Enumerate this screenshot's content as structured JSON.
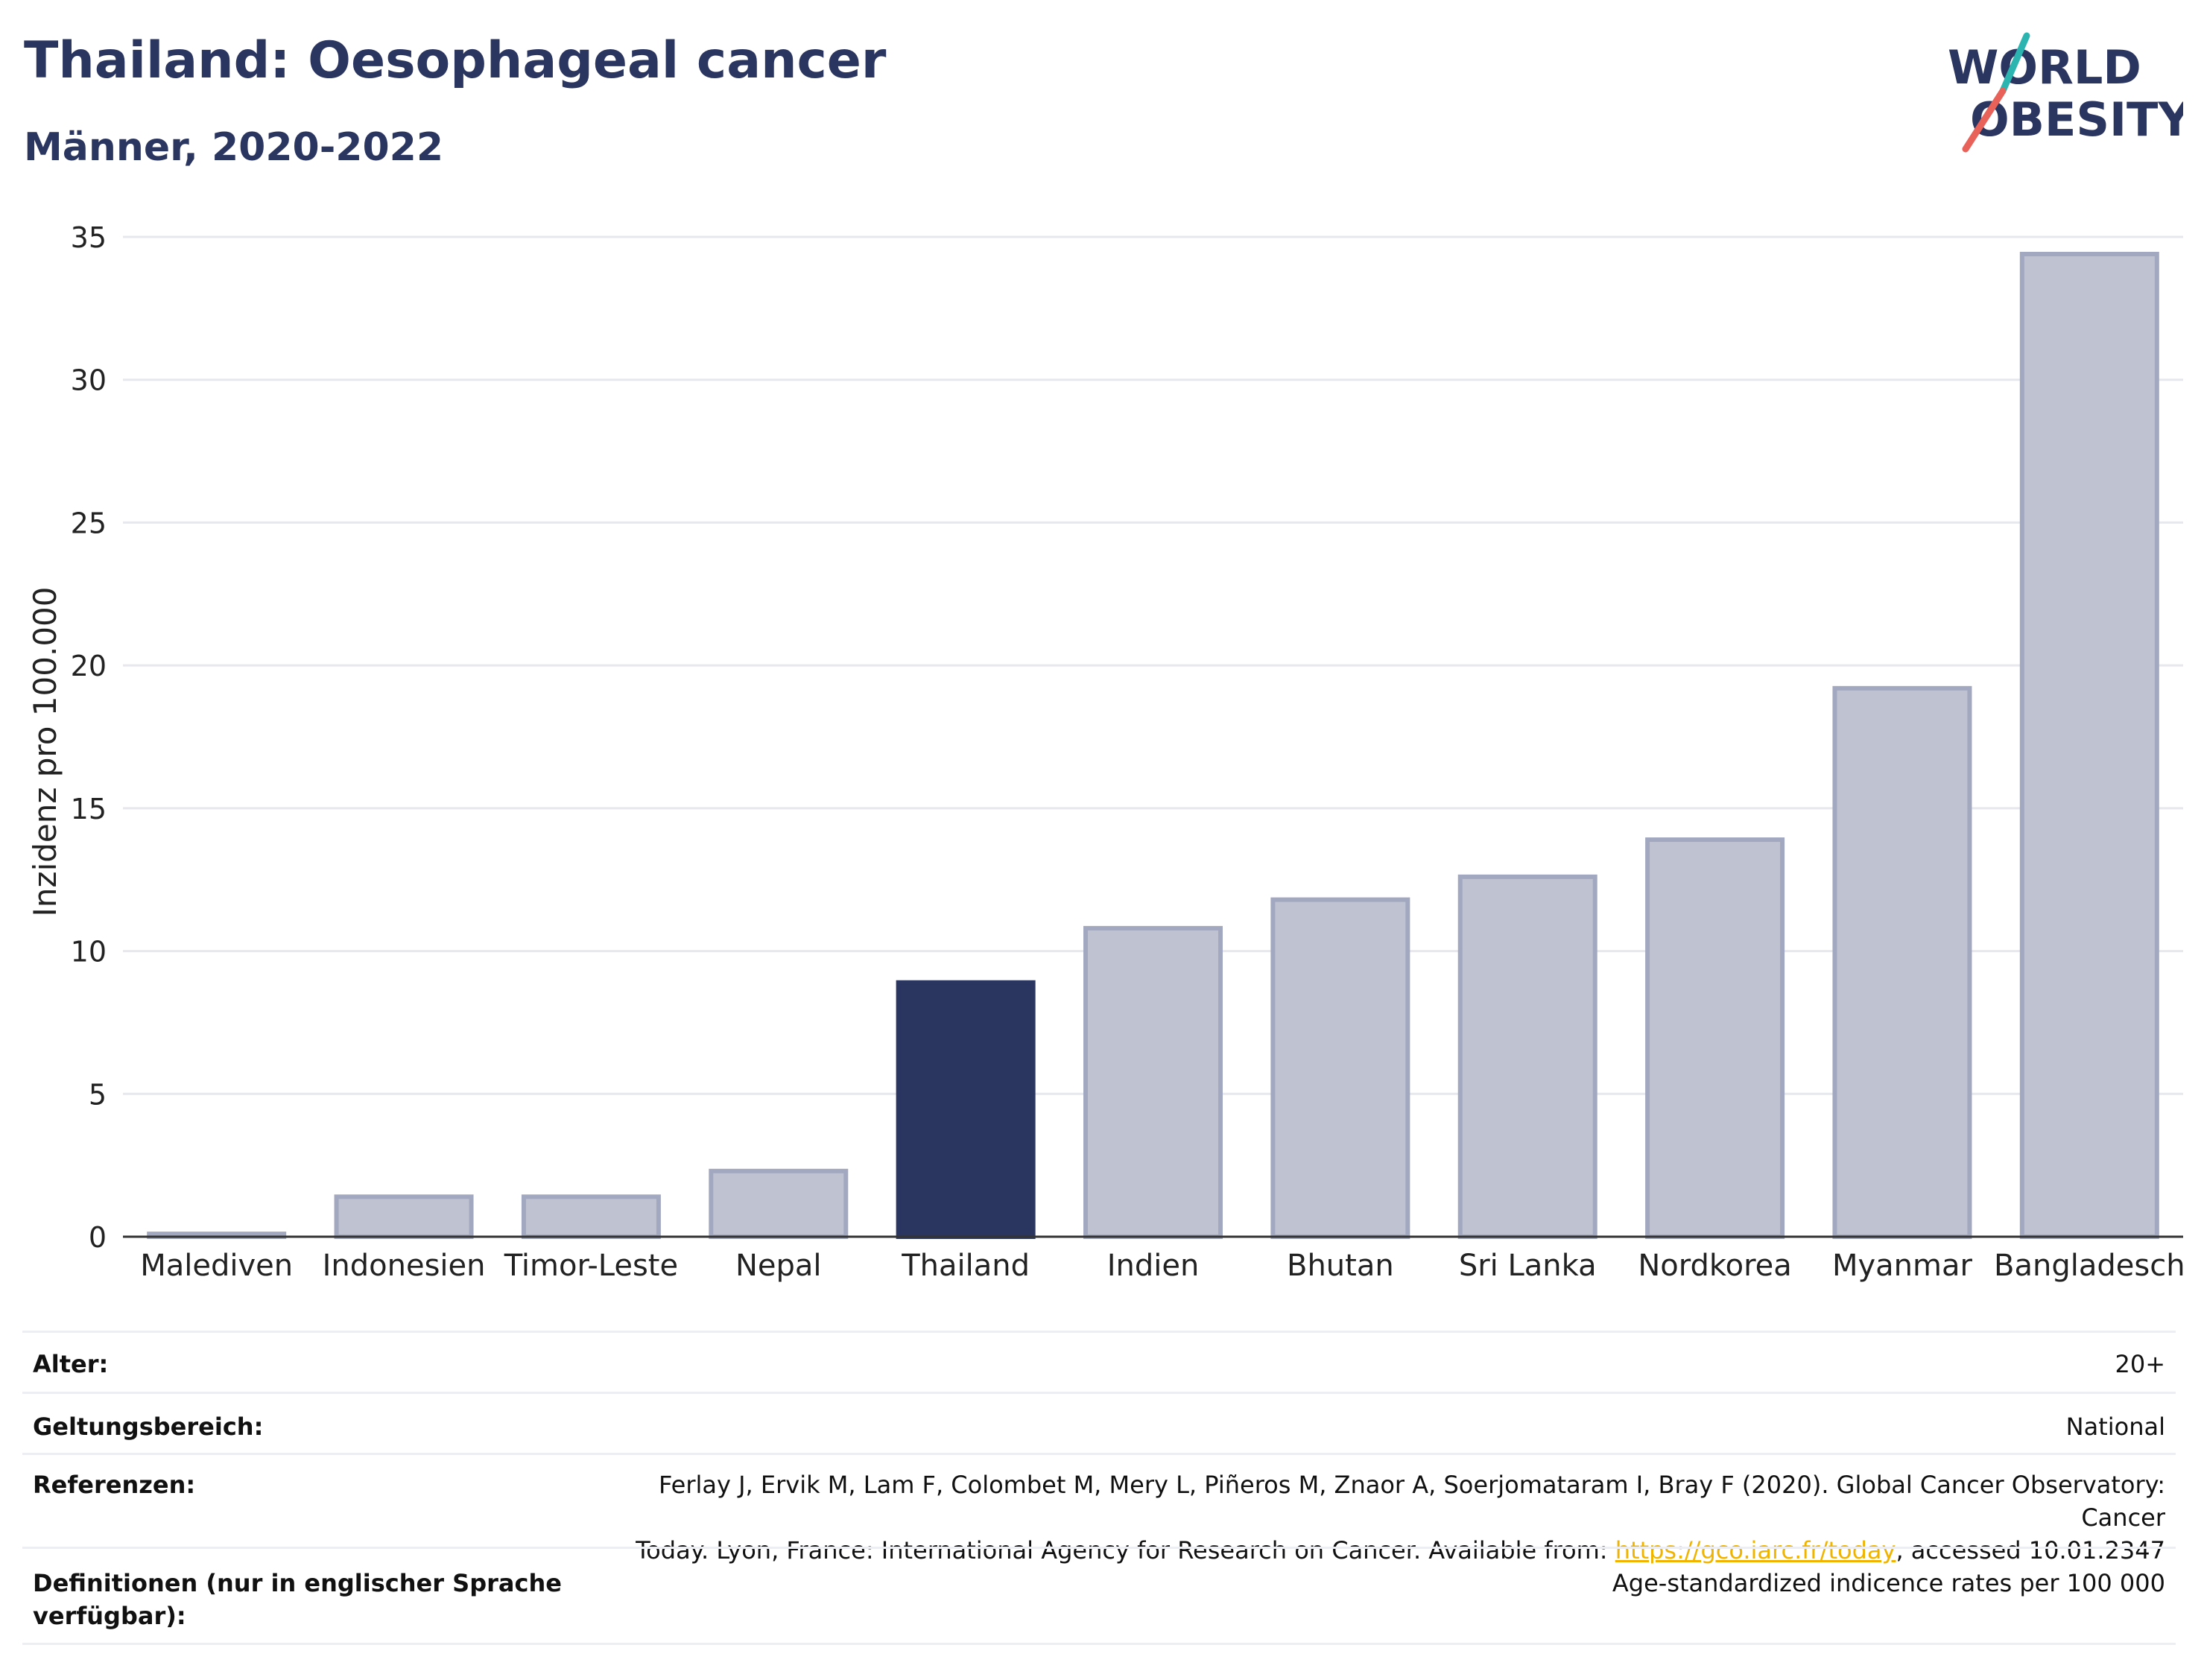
{
  "header": {
    "title": "Thailand: Oesophageal cancer",
    "subtitle": "Männer, 2020-2022"
  },
  "logo": {
    "line1": "WORLD",
    "line2": "OBESITY",
    "accent_colors": [
      "#2cb5b0",
      "#e8625a"
    ]
  },
  "chart_data": {
    "type": "bar",
    "categories": [
      "Malediven",
      "Indonesien",
      "Timor-Leste",
      "Nepal",
      "Thailand",
      "Indien",
      "Bhutan",
      "Sri Lanka",
      "Nordkorea",
      "Myanmar",
      "Bangladesch"
    ],
    "values": [
      0.1,
      1.4,
      1.4,
      2.3,
      8.9,
      10.8,
      11.8,
      12.6,
      13.9,
      19.2,
      34.4
    ],
    "highlight": "Thailand",
    "ylabel": "Inzidenz pro 100.000",
    "xlabel": "",
    "ylim": [
      0,
      35
    ],
    "yticks": [
      0,
      5,
      10,
      15,
      20,
      25,
      30,
      35
    ],
    "grid": true,
    "colors": {
      "bar": "#bfc3d1",
      "bar_stroke": "#a2a8bf",
      "highlight": "#2a3560",
      "axis": "#333333",
      "grid": "#e6e8ee"
    }
  },
  "meta": {
    "rows": [
      {
        "label": "Alter:",
        "value": "20+"
      },
      {
        "label": "Geltungsbereich:",
        "value": "National"
      },
      {
        "label": "Referenzen:",
        "value_line1": "Ferlay J, Ervik M, Lam F, Colombet M, Mery L, Piñeros M, Znaor A, Soerjomataram I, Bray F (2020). Global Cancer Observatory: Cancer",
        "value_line2_pre": "Today. Lyon, France: International Agency for Research on Cancer. Available from: ",
        "link": "https://gco.iarc.fr/today",
        "value_line2_post": ", accessed 10.01.2347"
      },
      {
        "label_line1": "Definitionen (nur in englischer Sprache",
        "label_line2": "verfügbar):",
        "value": "Age-standardized indicence rates per 100 000"
      }
    ]
  }
}
